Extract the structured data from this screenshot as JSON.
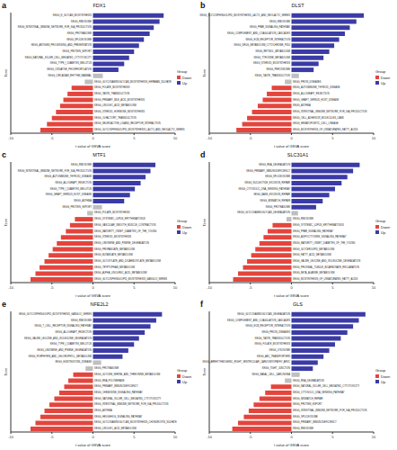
{
  "chart_data": [
    {
      "type": "bar",
      "orientation": "horizontal",
      "title": "FDX1",
      "annotations": [
        "a"
      ],
      "x_label": "t value of GSVA score",
      "y_label": "Term",
      "categories": [
        "KEGG_N_GLYCAN_BIOSYNTHESIS",
        "KEGG_RIBOSOME",
        "KEGG_INTESTINAL_IMMUNE_NETWORK_FOR_IGA_PRODUCTION",
        "KEGG_PROTEASOME",
        "KEGG_SPLICEOSOME",
        "KEGG_ANTIGEN_PROCESSING_AND_PRESENTATION",
        "KEGG_PROTEIN_EXPORT",
        "KEGG_NATURAL_KILLER_CELL_MEDIATED_CYTOTOXICITY",
        "KEGG_TYPE_I_DIABETES_MELLITUS",
        "KEGG_OXIDATIVE_PHOSPHORYLATION",
        "KEGG_CIRCADIAN_RHYTHM_MAMMAL",
        "KEGG_GLYCOSAMINOGLYCAN_BIOSYNTHESIS_HEPARAN_SULFATE",
        "KEGG_FOLATE_BIOSYNTHESIS",
        "KEGG_TASTE_TRANSDUCTION",
        "KEGG_PRIMARY_BILE_ACID_BIOSYNTHESIS",
        "KEGG_LINOLEIC_ACID_METABOLISM",
        "KEGG_STEROID_HORMONE_BIOSYNTHESIS",
        "KEGG_OLFACTORY_TRANSDUCTION",
        "KEGG_NEUROACTIVE_LIGAND_RECEPTOR_INTERACTION",
        "KEGG_GLYCOSPHINGOLIPID_BIOSYNTHESIS_LACTO_AND_NEOLACTO_SERIES"
      ],
      "values": [
        8.6,
        8.1,
        7.4,
        6.9,
        6.2,
        5.6,
        5.0,
        4.4,
        3.8,
        3.1,
        1.2,
        -1.0,
        -2.6,
        -3.1,
        -3.6,
        -4.0,
        -4.5,
        -5.0,
        -5.6,
        -6.4
      ],
      "colors": [
        "#3b3ba6",
        "#3b3ba6",
        "#3b3ba6",
        "#3b3ba6",
        "#3b3ba6",
        "#3b3ba6",
        "#3b3ba6",
        "#3b3ba6",
        "#3b3ba6",
        "#3b3ba6",
        "#bfbfbf",
        "#bfbfbf",
        "#e3453d",
        "#e3453d",
        "#e3453d",
        "#e3453d",
        "#e3453d",
        "#e3453d",
        "#e3453d",
        "#e3453d"
      ],
      "xlim": [
        -10,
        10
      ],
      "xticks": [
        -10,
        -5,
        0,
        5,
        10
      ],
      "tick_labels": "x",
      "grid": false,
      "legend": "right",
      "legend_title": "Group",
      "legend_entries": [
        {
          "name": "Down",
          "color": "#e3453d"
        },
        {
          "name": "Up",
          "color": "#3b3ba6"
        }
      ]
    },
    {
      "type": "bar",
      "orientation": "horizontal",
      "title": "DLST",
      "annotations": [
        "b"
      ],
      "x_label": "t value of GSVA score",
      "y_label": "Term",
      "categories": [
        "KEGG_GLYCOSPHINGOLIPID_BIOSYNTHESIS_LACTO_AND_NEOLACTO_SERIES",
        "KEGG_RIBOSOME",
        "KEGG_PPAR_SIGNALING_PATHWAY",
        "KEGG_COMPLEMENT_AND_COAGULATION_CASCADES",
        "KEGG_ECM_RECEPTOR_INTERACTION",
        "KEGG_DRUG_METABOLISM_CYTOCHROME_P450",
        "KEGG_RETINOL_METABOLISM",
        "KEGG_TYROSINE_METABOLISM",
        "KEGG_STEROID_BIOSYNTHESIS",
        "KEGG_PEROXISOME",
        "KEGG_TASTE_TRANSDUCTION",
        "KEGG_PRION_DISEASES",
        "KEGG_AUTOIMMUNE_THYROID_DISEASE",
        "KEGG_ALLOGRAFT_REJECTION",
        "KEGG_GRAFT_VERSUS_HOST_DISEASE",
        "KEGG_ASTHMA",
        "KEGG_INTESTINAL_IMMUNE_NETWORK_FOR_IGA_PRODUCTION",
        "KEGG_CELL_ADHESION_MOLECULES_CAMS",
        "KEGG_HEMATOPOIETIC_CELL_LINEAGE",
        "KEGG_BIOSYNTHESIS_OF_UNSATURATED_FATTY_ACIDS"
      ],
      "values": [
        8.8,
        7.9,
        7.1,
        6.5,
        5.8,
        5.2,
        4.6,
        3.9,
        3.3,
        2.7,
        0.9,
        -0.8,
        -2.4,
        -3.0,
        -3.5,
        -4.1,
        -4.8,
        -5.4,
        -6.0,
        -6.7
      ],
      "colors": [
        "#3b3ba6",
        "#3b3ba6",
        "#3b3ba6",
        "#3b3ba6",
        "#3b3ba6",
        "#3b3ba6",
        "#3b3ba6",
        "#3b3ba6",
        "#3b3ba6",
        "#3b3ba6",
        "#bfbfbf",
        "#bfbfbf",
        "#e3453d",
        "#e3453d",
        "#e3453d",
        "#e3453d",
        "#e3453d",
        "#e3453d",
        "#e3453d",
        "#e3453d"
      ],
      "xlim": [
        -10,
        10
      ],
      "xticks": [
        -10,
        -5,
        0,
        5,
        10
      ],
      "tick_labels": "x",
      "grid": false,
      "legend": "right",
      "legend_title": "Group",
      "legend_entries": [
        {
          "name": "Down",
          "color": "#e3453d"
        },
        {
          "name": "Up",
          "color": "#3b3ba6"
        }
      ]
    },
    {
      "type": "bar",
      "orientation": "horizontal",
      "title": "MTF1",
      "annotations": [
        "c"
      ],
      "x_label": "t value of GSVA score",
      "y_label": "Term",
      "categories": [
        "KEGG_RIBOSOME",
        "KEGG_INTESTINAL_IMMUNE_NETWORK_FOR_IGA_PRODUCTION",
        "KEGG_AUTOIMMUNE_THYROID_DISEASE",
        "KEGG_ALLOGRAFT_REJECTION",
        "KEGG_TYPE_I_DIABETES_MELLITUS",
        "KEGG_GRAFT_VERSUS_HOST_DISEASE",
        "KEGG_ASTHMA",
        "KEGG_PROTEIN_EXPORT",
        "KEGG_FOLATE_BIOSYNTHESIS",
        "KEGG_SYSTEMIC_LUPUS_ERYTHEMATOSUS",
        "KEGG_VASCULAR_SMOOTH_MUSCLE_CONTRACTION",
        "KEGG_MATURITY_ONSET_DIABETES_OF_THE_YOUNG",
        "KEGG_STEROID_BIOSYNTHESIS",
        "KEGG_LIMONENE_AND_PINENE_DEGRADATION",
        "KEGG_PROPANOATE_METABOLISM",
        "KEGG_BUTANOATE_METABOLISM",
        "KEGG_GLYOXYLATE_AND_DICARBOXYLATE_METABOLISM",
        "KEGG_TRYPTOPHAN_METABOLISM",
        "KEGG_ALPHA_LINOLENIC_ACID_METABOLISM",
        "KEGG_GLYCOSPHINGOLIPID_BIOSYNTHESIS_GANGLIO_SERIES"
      ],
      "values": [
        7.6,
        7.0,
        6.4,
        5.8,
        5.1,
        4.5,
        3.8,
        1.1,
        -0.7,
        -2.2,
        -2.8,
        -3.3,
        -3.9,
        -4.4,
        -4.9,
        -5.4,
        -5.9,
        -6.5,
        -7.0,
        -7.6
      ],
      "colors": [
        "#3b3ba6",
        "#3b3ba6",
        "#3b3ba6",
        "#3b3ba6",
        "#3b3ba6",
        "#3b3ba6",
        "#3b3ba6",
        "#bfbfbf",
        "#bfbfbf",
        "#e3453d",
        "#e3453d",
        "#e3453d",
        "#e3453d",
        "#e3453d",
        "#e3453d",
        "#e3453d",
        "#e3453d",
        "#e3453d",
        "#e3453d",
        "#e3453d"
      ],
      "xlim": [
        -10,
        10
      ],
      "xticks": [
        -10,
        -5,
        0,
        5,
        10
      ],
      "tick_labels": "x",
      "grid": false,
      "legend": "right",
      "legend_title": "Group",
      "legend_entries": [
        {
          "name": "Down",
          "color": "#e3453d"
        },
        {
          "name": "Up",
          "color": "#3b3ba6"
        }
      ]
    },
    {
      "type": "bar",
      "orientation": "horizontal",
      "title": "SLC31A1",
      "annotations": [
        "d"
      ],
      "x_label": "t value of GSVA score",
      "y_label": "Term",
      "categories": [
        "KEGG_RNA_DEGRADATION",
        "KEGG_PRIMARY_IMMUNODEFICIENCY",
        "KEGG_SPLICEOSOME",
        "KEGG_NUCLEOTIDE_EXCISION_REPAIR",
        "KEGG_CYTOSOLIC_DNA_SENSING_PATHWAY",
        "KEGG_BASE_EXCISION_REPAIR",
        "KEGG_MISMATCH_REPAIR",
        "KEGG_PROTEASOME",
        "KEGG_GLYCOSAMINOGLYCAN_DEGRADATION",
        "KEGG_RIBOSOME",
        "KEGG_SYSTEMIC_LUPUS_ERYTHEMATOSUS",
        "KEGG_PPAR_SIGNALING_PATHWAY",
        "KEGG_ADIPOCYTOKINE_SIGNALING_PATHWAY",
        "KEGG_MATURITY_ONSET_DIABETES_OF_THE_YOUNG",
        "KEGG_GLYCEROLIPID_METABOLISM",
        "KEGG_FATTY_ACID_METABOLISM",
        "KEGG_VALINE_LEUCINE_AND_ISOLEUCINE_DEGRADATION",
        "KEGG_PROXIMAL_TUBULE_BICARBONATE_RECLAMATION",
        "KEGG_BETA_ALANINE_METABOLISM",
        "KEGG_BIOSYNTHESIS_OF_UNSATURATED_FATTY_ACIDS"
      ],
      "values": [
        8.3,
        7.5,
        6.8,
        6.1,
        5.3,
        4.6,
        3.8,
        3.0,
        0.8,
        -0.6,
        -2.3,
        -2.9,
        -3.4,
        -3.9,
        -4.4,
        -4.9,
        -5.4,
        -5.9,
        -6.5,
        -7.1
      ],
      "colors": [
        "#3b3ba6",
        "#3b3ba6",
        "#3b3ba6",
        "#3b3ba6",
        "#3b3ba6",
        "#3b3ba6",
        "#3b3ba6",
        "#3b3ba6",
        "#bfbfbf",
        "#bfbfbf",
        "#e3453d",
        "#e3453d",
        "#e3453d",
        "#e3453d",
        "#e3453d",
        "#e3453d",
        "#e3453d",
        "#e3453d",
        "#e3453d",
        "#e3453d"
      ],
      "xlim": [
        -10,
        10
      ],
      "xticks": [
        -10,
        -5,
        0,
        5,
        10
      ],
      "tick_labels": "x",
      "grid": false,
      "legend": "right",
      "legend_title": "Group",
      "legend_entries": [
        {
          "name": "Down",
          "color": "#e3453d"
        },
        {
          "name": "Up",
          "color": "#3b3ba6"
        }
      ]
    },
    {
      "type": "bar",
      "orientation": "horizontal",
      "title": "NFE2L2",
      "annotations": [
        "e"
      ],
      "x_label": "t value of GSVA score",
      "y_label": "Term",
      "categories": [
        "KEGG_GLYCOSPHINGOLIPID_BIOSYNTHESIS_GANGLIO_SERIES",
        "KEGG_RIBOSOME",
        "KEGG_T_CELL_RECEPTOR_SIGNALING_PATHWAY",
        "KEGG_ALLOGRAFT_REJECTION",
        "KEGG_VALINE_LEUCINE_AND_ISOLEUCINE_DEGRADATION",
        "KEGG_TYPE_I_DIABETES_MELLITUS",
        "KEGG_LIMONENE_AND_PINENE_DEGRADATION",
        "KEGG_PORPHYRIN_AND_CHLOROPHYLL_METABOLISM",
        "KEGG_HUNTINGTONS_DISEASE",
        "KEGG_PROTEASOME",
        "KEGG_GLYCINE_SERINE_AND_THREONINE_METABOLISM",
        "KEGG_RNA_POLYMERASE",
        "KEGG_PRIMARY_IMMUNODEFICIENCY",
        "KEGG_CHEMOKINE_SIGNALING_PATHWAY",
        "KEGG_NATURAL_KILLER_CELL_MEDIATED_CYTOTOXICITY",
        "KEGG_INTESTINAL_IMMUNE_NETWORK_FOR_IGA_PRODUCTION",
        "KEGG_ASTHMA",
        "KEGG_HEDGEHOG_SIGNALING_PATHWAY",
        "KEGG_GLYCOSAMINOGLYCAN_BIOSYNTHESIS_CHONDROITIN_SULFATE",
        "KEGG_LINOLEIC_ACID_METABOLISM"
      ],
      "values": [
        8.4,
        7.7,
        7.0,
        6.3,
        5.6,
        5.0,
        4.3,
        3.6,
        1.0,
        -0.9,
        -2.4,
        -3.0,
        -3.5,
        -4.1,
        -4.7,
        -5.3,
        -5.9,
        -6.4,
        -7.0,
        -7.6
      ],
      "colors": [
        "#3b3ba6",
        "#3b3ba6",
        "#3b3ba6",
        "#3b3ba6",
        "#3b3ba6",
        "#3b3ba6",
        "#3b3ba6",
        "#3b3ba6",
        "#bfbfbf",
        "#bfbfbf",
        "#e3453d",
        "#e3453d",
        "#e3453d",
        "#e3453d",
        "#e3453d",
        "#e3453d",
        "#e3453d",
        "#e3453d",
        "#e3453d",
        "#e3453d"
      ],
      "xlim": [
        -10,
        10
      ],
      "xticks": [
        -10,
        -5,
        0,
        5,
        10
      ],
      "tick_labels": "x",
      "grid": false,
      "legend": "right",
      "legend_title": "Group",
      "legend_entries": [
        {
          "name": "Down",
          "color": "#e3453d"
        },
        {
          "name": "Up",
          "color": "#3b3ba6"
        }
      ]
    },
    {
      "type": "bar",
      "orientation": "horizontal",
      "title": "GLS",
      "annotations": [
        "f"
      ],
      "x_label": "t value of GSVA score",
      "y_label": "Term",
      "categories": [
        "KEGG_GLYCOSAMINOGLYCAN_DEGRADATION",
        "KEGG_COMPLEMENT_AND_COAGULATION_CASCADES",
        "KEGG_ECM_RECEPTOR_INTERACTION",
        "KEGG_PRION_DISEASES",
        "KEGG_TASTE_TRANSDUCTION",
        "KEGG_FOLATE_BIOSYNTHESIS",
        "KEGG_LYSOSOME",
        "KEGG_ABC_TRANSPORTERS",
        "KEGG_ARRHYTHMOGENIC_RIGHT_VENTRICULAR_CARDIOMYOPATHY_ARVC",
        "KEGG_TIGHT_JUNCTION",
        "KEGG_BASAL_CELL_CARCINOMA",
        "KEGG_RNA_DEGRADATION",
        "KEGG_NATURAL_KILLER_CELL_MEDIATED_CYTOTOXICITY",
        "KEGG_CYTOSOLIC_DNA_SENSING_PATHWAY",
        "KEGG_MISMATCH_REPAIR",
        "KEGG_PROTEIN_EXPORT",
        "KEGG_INTESTINAL_IMMUNE_NETWORK_FOR_IGA_PRODUCTION",
        "KEGG_SPLICEOSOME",
        "KEGG_PRIMARY_IMMUNODEFICIENCY",
        "KEGG_RIBOSOME"
      ],
      "values": [
        9.0,
        8.2,
        7.5,
        6.8,
        6.0,
        5.3,
        4.6,
        3.9,
        3.2,
        2.6,
        1.0,
        -0.8,
        -2.5,
        -3.2,
        -3.9,
        -4.6,
        -5.2,
        -5.8,
        -6.5,
        -7.2
      ],
      "colors": [
        "#3b3ba6",
        "#3b3ba6",
        "#3b3ba6",
        "#3b3ba6",
        "#3b3ba6",
        "#3b3ba6",
        "#3b3ba6",
        "#3b3ba6",
        "#3b3ba6",
        "#3b3ba6",
        "#bfbfbf",
        "#bfbfbf",
        "#e3453d",
        "#e3453d",
        "#e3453d",
        "#e3453d",
        "#e3453d",
        "#e3453d",
        "#e3453d",
        "#e3453d"
      ],
      "xlim": [
        -10,
        10
      ],
      "xticks": [
        -10,
        -5,
        0,
        5,
        10
      ],
      "tick_labels": "x",
      "grid": false,
      "legend": "right",
      "legend_title": "Group",
      "legend_entries": [
        {
          "name": "Down",
          "color": "#e3453d"
        },
        {
          "name": "Up",
          "color": "#3b3ba6"
        }
      ]
    }
  ]
}
